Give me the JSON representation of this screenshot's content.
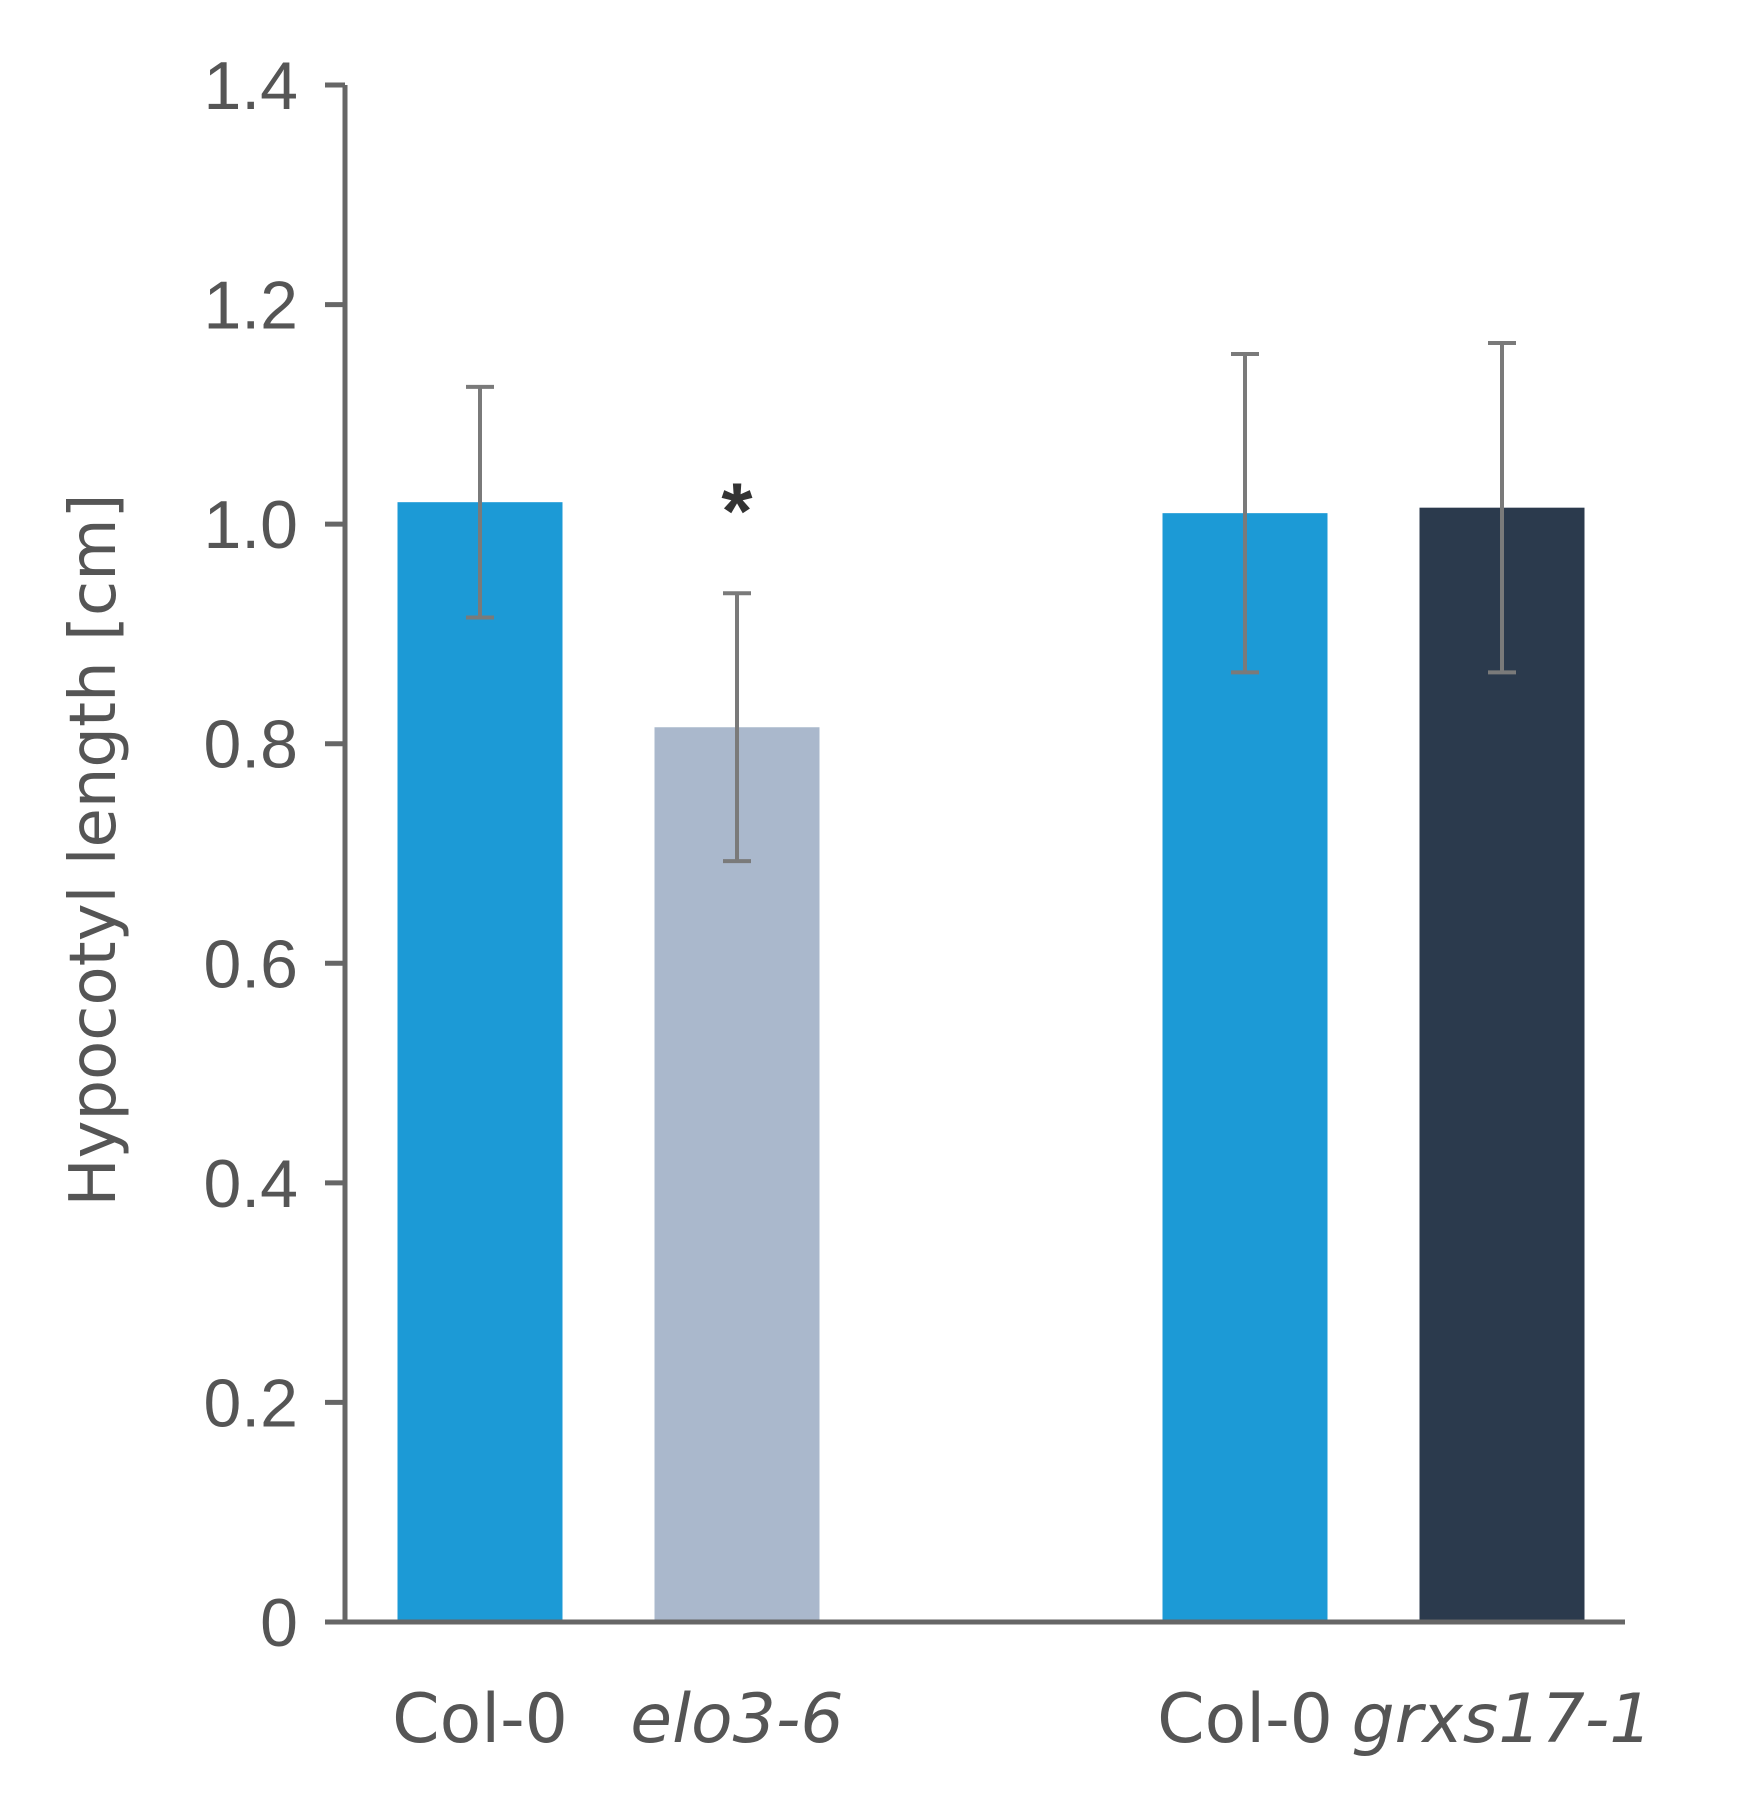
{
  "chart_data": {
    "type": "bar",
    "categories": [
      "Col-0",
      "elo3-6",
      "Col-0",
      "grxs17-1"
    ],
    "italic_categories": [
      false,
      true,
      false,
      true
    ],
    "values": [
      1.02,
      0.815,
      1.01,
      1.015
    ],
    "errors": [
      0.105,
      0.122,
      0.145,
      0.15
    ],
    "bar_colors": [
      "#1c9ad6",
      "#aab8cc",
      "#1c9ad6",
      "#2b3a4d"
    ],
    "ylabel": "Hypocotyl length [cm]",
    "ylim": [
      0,
      1.4
    ],
    "yticks": [
      0,
      0.2,
      0.4,
      0.6,
      0.8,
      1.0,
      1.2,
      1.4
    ],
    "ytick_labels": [
      "0",
      "0.2",
      "0.4",
      "0.6",
      "0.8",
      "1.0",
      "1.2",
      "1.4"
    ],
    "annotations": [
      {
        "category_index": 1,
        "text": "*"
      }
    ],
    "grid": false,
    "legend": "none"
  }
}
